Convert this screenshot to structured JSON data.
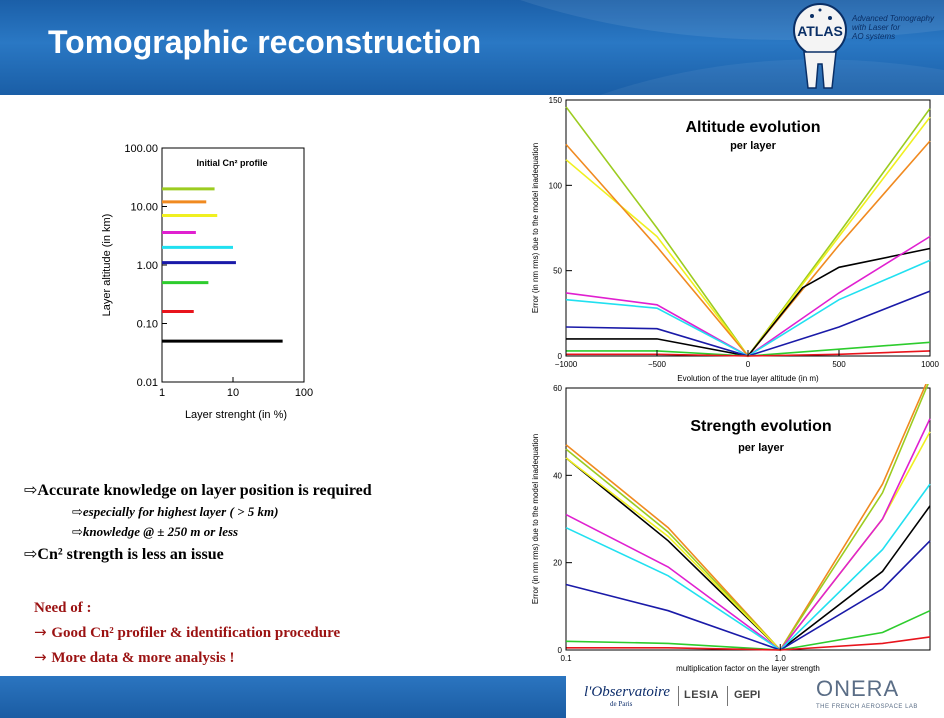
{
  "slide": {
    "title": "Tomographic reconstruction",
    "logo_text": "ATLAS",
    "logo_subtitle": [
      "Advanced Tomography",
      "with Laser for",
      "AO systems"
    ],
    "bullets": [
      "Accurate knowledge on layer position is required",
      "especially for highest layer ( > 5 km)",
      "knowledge @ ± 250 m or less",
      "Cn² strength is less an issue"
    ],
    "need": [
      "Need of :",
      "Good Cn² profiler & identification procedure",
      "More data & more analysis !"
    ],
    "footer_logos": {
      "observatoire": "l'Observatoire",
      "observatoire_sub": "de Paris",
      "lesia": "LESIA",
      "gepi": "GEPI",
      "onera": "ONERA",
      "onera_sub": "THE FRENCH AEROSPACE LAB"
    },
    "colors": {
      "header_blue": "#2a78c4",
      "need_red": "#9b1212"
    }
  },
  "chart_data": [
    {
      "type": "bar",
      "orientation": "horizontal",
      "title": "Initial Cn² profile",
      "xlabel": "Layer strenght (in %)",
      "ylabel": "Layer altitude (in km)",
      "xscale": "log",
      "yscale": "log",
      "xlim": [
        1,
        100
      ],
      "ylim": [
        0.01,
        100
      ],
      "xticks": [
        "1",
        "10",
        "100"
      ],
      "yticks": [
        "0.01",
        "0.10",
        "1.00",
        "10.00",
        "100.00"
      ],
      "bars": [
        {
          "altitude": 0.05,
          "strength": 50,
          "color": "#000000"
        },
        {
          "altitude": 0.16,
          "strength": 2.8,
          "color": "#e8141c"
        },
        {
          "altitude": 0.5,
          "strength": 4.5,
          "color": "#2dcc2d"
        },
        {
          "altitude": 1.1,
          "strength": 11,
          "color": "#1a1aa8"
        },
        {
          "altitude": 2.0,
          "strength": 10,
          "color": "#21e0f0"
        },
        {
          "altitude": 3.6,
          "strength": 3,
          "color": "#e020d0"
        },
        {
          "altitude": 7.0,
          "strength": 6,
          "color": "#f0f020"
        },
        {
          "altitude": 12.0,
          "strength": 4.2,
          "color": "#f08a20"
        },
        {
          "altitude": 20.0,
          "strength": 5.5,
          "color": "#9ccc20"
        }
      ]
    },
    {
      "type": "line",
      "title": "Altitude evolution",
      "subtitle": "per layer",
      "xlabel": "Evolution of the true layer altitude (in m)",
      "ylabel": "Error (in nm rms) due to the model inadequation",
      "xlim": [
        -1000,
        1000
      ],
      "ylim": [
        0,
        150
      ],
      "xticks": [
        "-1000",
        "-500",
        "0",
        "500",
        "1000"
      ],
      "yticks": [
        "0",
        "50",
        "100",
        "150"
      ],
      "series": [
        {
          "color": "#9ccc20",
          "x": [
            -1000,
            -500,
            0,
            500,
            1000
          ],
          "y": [
            146,
            75,
            0,
            72,
            145
          ]
        },
        {
          "color": "#f0f020",
          "x": [
            -1000,
            -500,
            0,
            500,
            1000
          ],
          "y": [
            115,
            70,
            0,
            70,
            140
          ]
        },
        {
          "color": "#f08a20",
          "x": [
            -1000,
            -500,
            0,
            500,
            1000
          ],
          "y": [
            124,
            64,
            0,
            65,
            126
          ]
        },
        {
          "color": "#000000",
          "x": [
            -1000,
            -500,
            0,
            300,
            500,
            1000
          ],
          "y": [
            10,
            10,
            0,
            40,
            52,
            63
          ]
        },
        {
          "color": "#e020d0",
          "x": [
            -1000,
            -500,
            0,
            500,
            1000
          ],
          "y": [
            37,
            30,
            0,
            37,
            70
          ]
        },
        {
          "color": "#21e0f0",
          "x": [
            -1000,
            -500,
            0,
            500,
            1000
          ],
          "y": [
            33,
            28,
            0,
            33,
            56
          ]
        },
        {
          "color": "#1a1aa8",
          "x": [
            -1000,
            -500,
            0,
            500,
            1000
          ],
          "y": [
            17,
            16,
            0,
            17,
            38
          ]
        },
        {
          "color": "#2dcc2d",
          "x": [
            -1000,
            -500,
            0,
            500,
            1000
          ],
          "y": [
            3,
            3,
            0,
            4,
            8
          ]
        },
        {
          "color": "#e8141c",
          "x": [
            -1000,
            -500,
            0,
            500,
            1000
          ],
          "y": [
            1,
            1,
            0,
            1,
            3
          ]
        }
      ]
    },
    {
      "type": "line",
      "title": "Strength evolution",
      "subtitle": "per layer",
      "xlabel": "multiplication factor on the layer strength",
      "ylabel": "Error (in nm rms) due to the model inadequation",
      "xscale": "log",
      "xlim": [
        0.1,
        5
      ],
      "ylim": [
        0,
        60
      ],
      "xticks": [
        "0.1",
        "1.0"
      ],
      "yticks": [
        "0",
        "20",
        "40",
        "60"
      ],
      "series": [
        {
          "color": "#f08a20",
          "x": [
            0.1,
            0.3,
            1.0,
            3.0,
            5.0
          ],
          "y": [
            47,
            28,
            0,
            38,
            63
          ]
        },
        {
          "color": "#9ccc20",
          "x": [
            0.1,
            0.3,
            1.0,
            3.0,
            5.0
          ],
          "y": [
            46,
            27,
            0,
            36,
            62
          ]
        },
        {
          "color": "#000000",
          "x": [
            0.1,
            0.3,
            1.0,
            3.0,
            5.0
          ],
          "y": [
            44,
            25,
            0,
            18,
            33
          ]
        },
        {
          "color": "#f0f020",
          "x": [
            0.1,
            0.3,
            1.0,
            3.0,
            5.0
          ],
          "y": [
            44,
            26,
            0,
            30,
            50
          ]
        },
        {
          "color": "#e020d0",
          "x": [
            0.1,
            0.3,
            1.0,
            3.0,
            5.0
          ],
          "y": [
            31,
            19,
            0,
            30,
            53
          ]
        },
        {
          "color": "#21e0f0",
          "x": [
            0.1,
            0.3,
            1.0,
            3.0,
            5.0
          ],
          "y": [
            28,
            17,
            0,
            23,
            38
          ]
        },
        {
          "color": "#1a1aa8",
          "x": [
            0.1,
            0.3,
            1.0,
            3.0,
            5.0
          ],
          "y": [
            15,
            9,
            0,
            14,
            25
          ]
        },
        {
          "color": "#2dcc2d",
          "x": [
            0.1,
            0.3,
            1.0,
            3.0,
            5.0
          ],
          "y": [
            2,
            1.5,
            0,
            4,
            9
          ]
        },
        {
          "color": "#e8141c",
          "x": [
            0.1,
            0.3,
            1.0,
            3.0,
            5.0
          ],
          "y": [
            0.5,
            0.5,
            0,
            1.5,
            3
          ]
        }
      ]
    }
  ]
}
